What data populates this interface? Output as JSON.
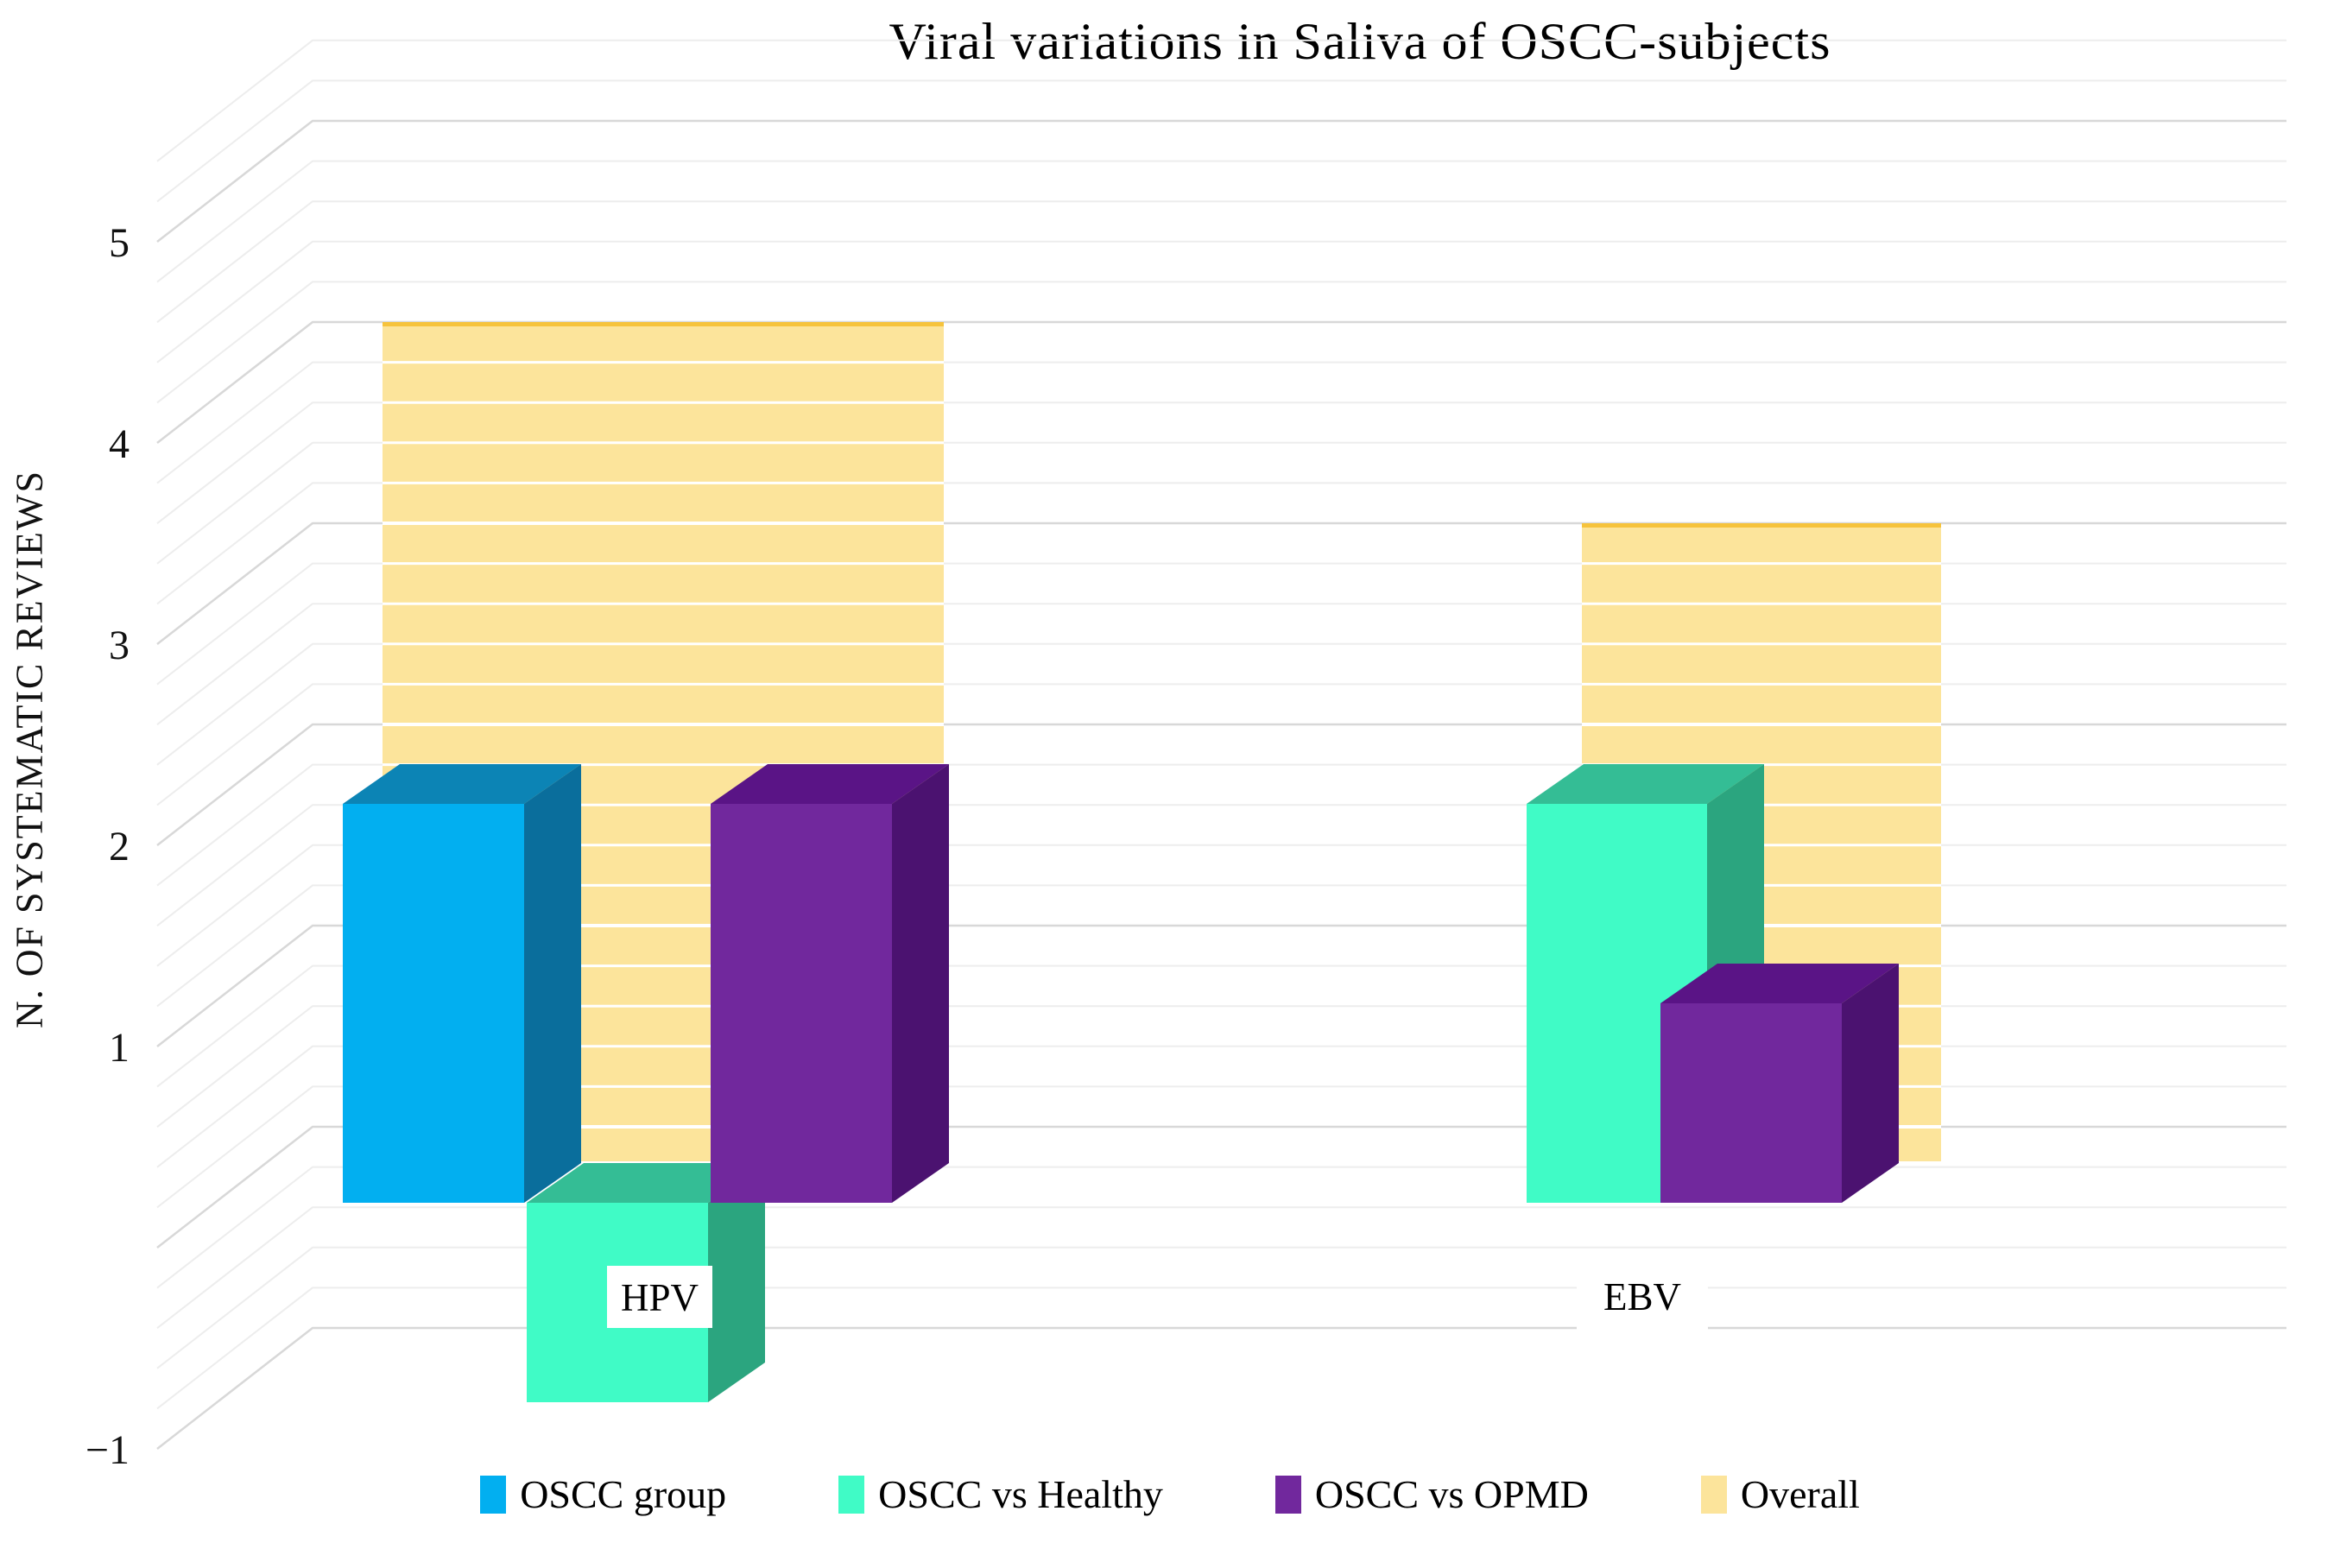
{
  "title": "Viral variations in Saliva of OSCC-subjects",
  "y_axis": {
    "label": "N. OF SYSTEMATIC REVIEWS",
    "tick_labels": [
      "5",
      "4",
      "3",
      "2",
      "1",
      "−1"
    ],
    "tick_values": [
      5,
      4,
      3,
      2,
      1,
      -1
    ],
    "min": -1,
    "max": 5,
    "minor_step": 0.2
  },
  "chart_data": {
    "type": "bar",
    "projection": "3d-perspective",
    "title": "Viral variations in Saliva of OSCC-subjects",
    "ylabel": "N. OF SYSTEMATIC REVIEWS",
    "ylim": [
      -1,
      5
    ],
    "grid": {
      "on": true,
      "minor_color": "#EDEDED",
      "major_color": "#D8D8D8",
      "stripe_color": "#FFFFFF"
    },
    "legend_position": "bottom",
    "background": "#FFFFFF",
    "categories": [
      "HPV",
      "EBV"
    ],
    "series": [
      {
        "name": "OSCC group",
        "values": [
          2,
          null
        ],
        "colors": {
          "front": "#02AFF0",
          "top": "#0C84B5",
          "side": "#0A6E9C"
        }
      },
      {
        "name": "OSCC vs Healthy",
        "values": [
          -1,
          2
        ],
        "colors": {
          "front": "#40FBC6",
          "top": "#34BD95",
          "side": "#2BA57F"
        }
      },
      {
        "name": "OSCC vs OPMD",
        "values": [
          2,
          1
        ],
        "colors": {
          "front": "#71289D",
          "top": "#5A1486",
          "side": "#4B1270"
        }
      },
      {
        "name": "Overall",
        "values": [
          4,
          3
        ],
        "colors": {
          "front": "#FCE49B",
          "top_line": "#F6C33C",
          "stripe": "#FFFFFF"
        }
      }
    ]
  },
  "legend": {
    "items": [
      "OSCC group",
      "OSCC vs Healthy",
      "OSCC vs OPMD",
      "Overall"
    ]
  }
}
